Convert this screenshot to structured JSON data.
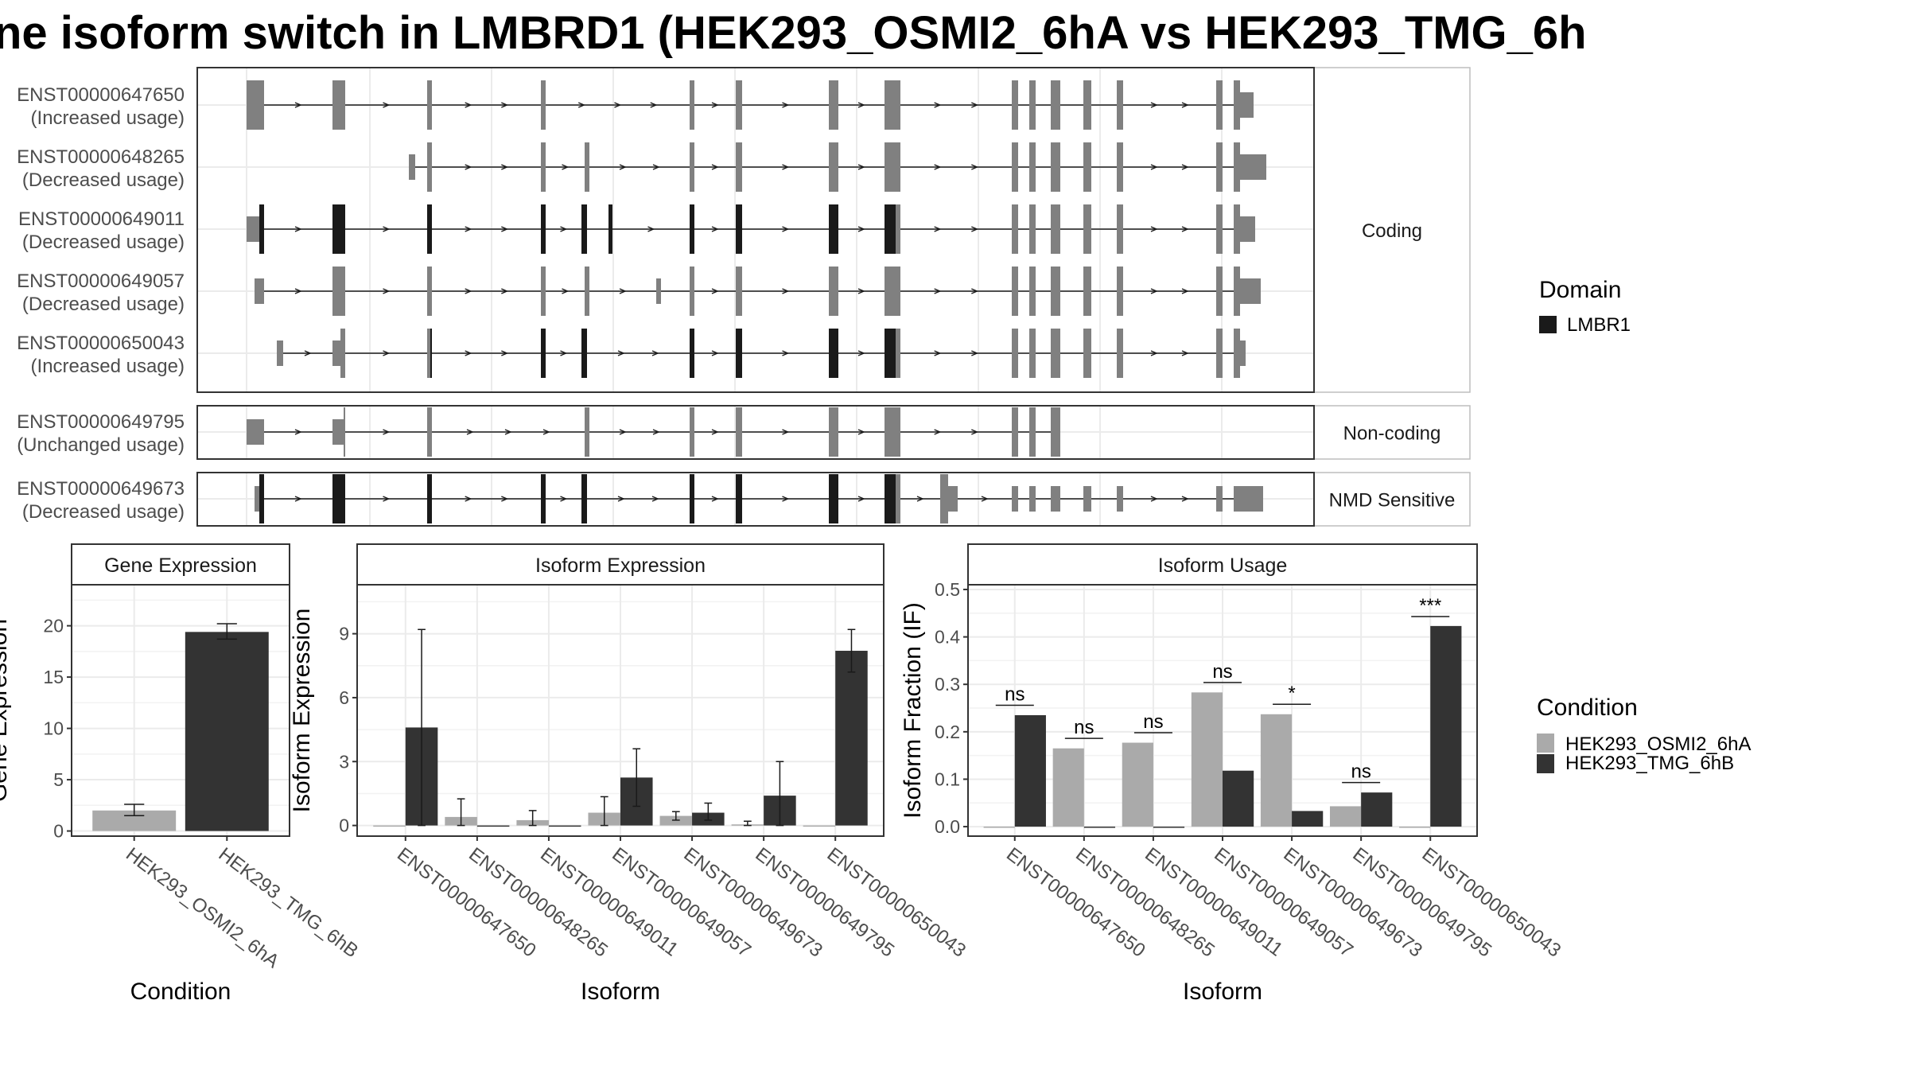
{
  "title": "ne isoform switch in LMBRD1 (HEK293_OSMI2_6hA vs HEK293_TMG_6h",
  "colors": {
    "domain": "#1a1a1a",
    "exon": "#808080",
    "cond1": "#aaaaaa",
    "cond2": "#333333"
  },
  "domain_legend": {
    "title": "Domain",
    "items": [
      "LMBR1"
    ]
  },
  "condition_legend": {
    "title": "Condition",
    "items": [
      "HEK293_OSMI2_6hA",
      "HEK293_TMG_6hB"
    ]
  },
  "structure_panels": [
    {
      "label": "Coding",
      "transcripts": [
        {
          "id": "ENST00000647650",
          "usage": "(Increased usage)"
        },
        {
          "id": "ENST00000648265",
          "usage": "(Decreased usage)"
        },
        {
          "id": "ENST00000649011",
          "usage": "(Decreased usage)"
        },
        {
          "id": "ENST00000649057",
          "usage": "(Decreased usage)"
        },
        {
          "id": "ENST00000650043",
          "usage": "(Increased usage)"
        }
      ]
    },
    {
      "label": "Non-coding",
      "transcripts": [
        {
          "id": "ENST00000649795",
          "usage": "(Unchanged usage)"
        }
      ]
    },
    {
      "label": "NMD Sensitive",
      "transcripts": [
        {
          "id": "ENST00000649673",
          "usage": "(Decreased usage)"
        }
      ]
    }
  ],
  "chart_data": [
    {
      "type": "bar",
      "title": "Gene Expression",
      "xlabel": "Condition",
      "ylabel": "Gene Expression",
      "ylim": [
        -0.5,
        24
      ],
      "yticks": [
        0,
        5,
        10,
        15,
        20
      ],
      "categories": [
        "HEK293_OSMI2_6hA",
        "HEK293_TMG_6hB"
      ],
      "values": [
        2.0,
        19.4
      ],
      "errors": [
        [
          1.5,
          2.6
        ],
        [
          18.7,
          20.2
        ]
      ]
    },
    {
      "type": "bar",
      "title": "Isoform Expression",
      "xlabel": "Isoform",
      "ylabel": "Isoform Expression",
      "ylim": [
        -0.5,
        11.3
      ],
      "yticks": [
        0,
        3,
        6,
        9
      ],
      "categories": [
        "ENST00000647650",
        "ENST00000648265",
        "ENST00000649011",
        "ENST00000649057",
        "ENST00000649673",
        "ENST00000649795",
        "ENST00000650043"
      ],
      "series": [
        {
          "name": "HEK293_OSMI2_6hA",
          "values": [
            0.0,
            0.4,
            0.25,
            0.6,
            0.45,
            0.05,
            0.0
          ],
          "errors": [
            [
              0,
              0
            ],
            [
              0,
              1.25
            ],
            [
              0,
              0.7
            ],
            [
              0,
              1.35
            ],
            [
              0.25,
              0.65
            ],
            [
              0,
              0.2
            ],
            [
              0,
              0
            ]
          ]
        },
        {
          "name": "HEK293_TMG_6hB",
          "values": [
            4.6,
            0.0,
            0.0,
            2.25,
            0.6,
            1.4,
            8.2
          ],
          "errors": [
            [
              0,
              9.2
            ],
            [
              0,
              0
            ],
            [
              0,
              0
            ],
            [
              0.9,
              3.6
            ],
            [
              0.25,
              1.05
            ],
            [
              0,
              3.0
            ],
            [
              7.2,
              9.2
            ]
          ]
        }
      ]
    },
    {
      "type": "bar",
      "title": "Isoform Usage",
      "xlabel": "Isoform",
      "ylabel": "Isoform Fraction (IF)",
      "ylim": [
        -0.02,
        0.51
      ],
      "yticks": [
        0.0,
        0.1,
        0.2,
        0.3,
        0.4,
        0.5
      ],
      "categories": [
        "ENST00000647650",
        "ENST00000648265",
        "ENST00000649011",
        "ENST00000649057",
        "ENST00000649673",
        "ENST00000649795",
        "ENST00000650043"
      ],
      "series": [
        {
          "name": "HEK293_OSMI2_6hA",
          "values": [
            0.0,
            0.165,
            0.177,
            0.283,
            0.237,
            0.043,
            0.0
          ]
        },
        {
          "name": "HEK293_TMG_6hB",
          "values": [
            0.235,
            0.0,
            0.0,
            0.118,
            0.033,
            0.072,
            0.423
          ]
        }
      ],
      "significance": [
        "ns",
        "ns",
        "ns",
        "ns",
        "*",
        "ns",
        "***"
      ],
      "sig_y": [
        0.256,
        0.186,
        0.198,
        0.304,
        0.258,
        0.093,
        0.443
      ]
    }
  ]
}
